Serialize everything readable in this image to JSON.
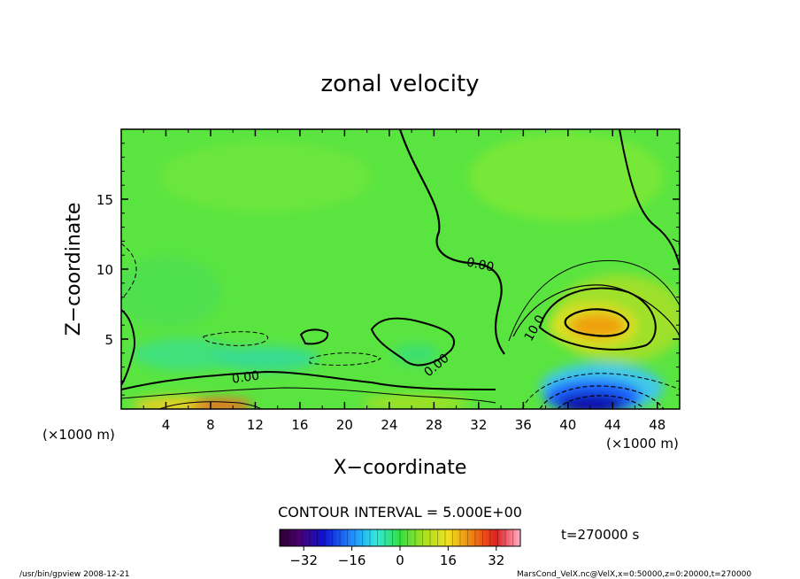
{
  "chart_data": {
    "type": "contour",
    "title": "zonal velocity",
    "xlabel": "X−coordinate",
    "ylabel": "Z−coordinate",
    "x_unit_label": "(×1000 m)",
    "y_unit_label": "(×1000 m)",
    "xlim": [
      0,
      50
    ],
    "ylim": [
      0,
      20
    ],
    "x_ticks": [
      4,
      8,
      12,
      16,
      20,
      24,
      28,
      32,
      36,
      40,
      44,
      48
    ],
    "y_ticks": [
      5,
      10,
      15
    ],
    "contour_labels": [
      {
        "text": "0.00",
        "x": 10.5,
        "y": 2.5
      },
      {
        "text": "0.00",
        "x": 28.0,
        "y": 3.8
      },
      {
        "text": "0.00",
        "x": 32.5,
        "y": 10.0
      },
      {
        "text": "10.0",
        "x": 36.0,
        "y": 5.8
      }
    ],
    "contour_interval_label": "CONTOUR INTERVAL = 5.000E+00",
    "time_label": "t=270000 s",
    "colorbar": {
      "min": -40,
      "max": 40,
      "ticks": [
        -32,
        -16,
        0,
        16,
        32
      ]
    },
    "features": [
      {
        "kind": "max",
        "x": 43,
        "y": 6.3,
        "value": 25
      },
      {
        "kind": "min",
        "x": 42,
        "y": 0.8,
        "value": -35
      },
      {
        "kind": "max",
        "x": 8,
        "y": 0.2,
        "value": 25
      }
    ]
  },
  "footer": {
    "left": "/usr/bin/gpview   2008-12-21",
    "right": "MarsCond_VelX.nc@VelX,x=0:50000,z=0:20000,t=270000"
  }
}
